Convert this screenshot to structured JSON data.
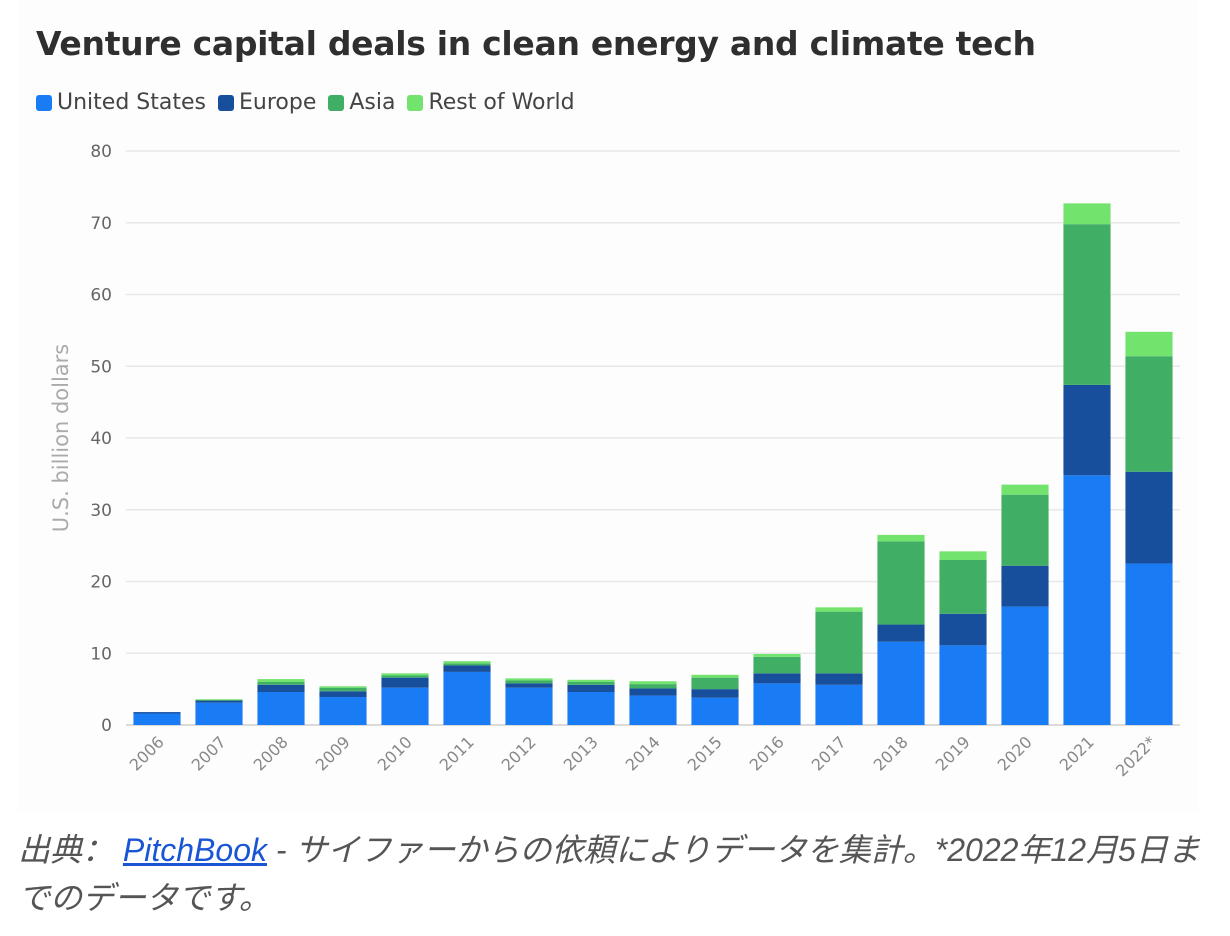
{
  "chart_data": {
    "type": "bar",
    "stacked": true,
    "title": "Venture capital deals in clean energy and climate tech",
    "xlabel": "",
    "ylabel": "U.S. billion dollars",
    "ylim": [
      0,
      80
    ],
    "yticks": [
      0,
      10,
      20,
      30,
      40,
      50,
      60,
      70,
      80
    ],
    "grid": true,
    "legend_position": "top-left",
    "categories": [
      "2006",
      "2007",
      "2008",
      "2009",
      "2010",
      "2011",
      "2012",
      "2013",
      "2014",
      "2015",
      "2016",
      "2017",
      "2018",
      "2019",
      "2020",
      "2021",
      "2022*"
    ],
    "series": [
      {
        "name": "United States",
        "color": "#1a7cf5",
        "values": [
          1.6,
          3.1,
          4.6,
          3.9,
          5.2,
          7.4,
          5.2,
          4.6,
          4.1,
          3.8,
          5.8,
          5.6,
          11.6,
          11.1,
          16.5,
          34.8,
          22.5
        ]
      },
      {
        "name": "Europe",
        "color": "#174f9c",
        "values": [
          0.2,
          0.3,
          1.0,
          0.8,
          1.4,
          0.9,
          0.6,
          1.0,
          1.0,
          1.2,
          1.4,
          1.6,
          2.4,
          4.4,
          5.7,
          12.6,
          12.8
        ]
      },
      {
        "name": "Asia",
        "color": "#40ae65",
        "values": [
          0.0,
          0.1,
          0.4,
          0.5,
          0.3,
          0.3,
          0.4,
          0.4,
          0.6,
          1.6,
          2.3,
          8.6,
          11.6,
          7.5,
          9.9,
          22.4,
          16.1
        ]
      },
      {
        "name": "Rest of World",
        "color": "#72e36d",
        "values": [
          0.0,
          0.1,
          0.4,
          0.2,
          0.3,
          0.3,
          0.3,
          0.3,
          0.4,
          0.4,
          0.4,
          0.6,
          0.9,
          1.2,
          1.4,
          2.9,
          3.4
        ]
      }
    ]
  },
  "caption": {
    "prefix": "出典：",
    "link": "PitchBook",
    "text": " - サイファーからの依頼によりデータを集計。*2022年12月5日までのデータです。"
  }
}
